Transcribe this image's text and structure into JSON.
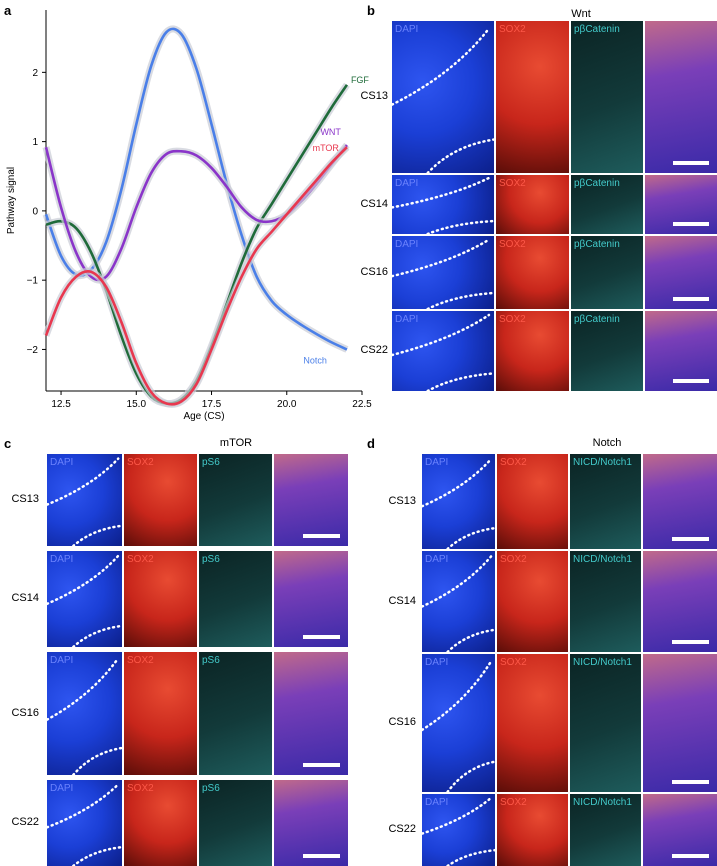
{
  "panel_letters": {
    "a": "a",
    "b": "b",
    "c": "c",
    "d": "d"
  },
  "chart_data": {
    "type": "line",
    "title": "",
    "xlabel": "Age (CS)",
    "ylabel": "Pathway signal",
    "xlim": [
      12,
      22.5
    ],
    "ylim": [
      -2.6,
      2.9
    ],
    "xticks": [
      "12.5",
      "15.0",
      "17.5",
      "20.0",
      "22.5"
    ],
    "xtick_values": [
      12.5,
      15,
      17.5,
      20,
      22.5
    ],
    "yticks": [
      "−2",
      "−1",
      "0",
      "1",
      "2"
    ],
    "ytick_values": [
      -2,
      -1,
      0,
      1,
      2
    ],
    "series": [
      {
        "name": "Notch",
        "color": "#4a7fe8",
        "x": [
          12,
          12.5,
          13,
          13.5,
          14,
          14.5,
          15,
          15.5,
          16,
          16.5,
          17,
          17.5,
          18,
          18.5,
          19,
          19.5,
          20,
          20.5,
          21,
          21.5,
          22
        ],
        "y": [
          -0.05,
          -0.65,
          -0.92,
          -0.85,
          -0.45,
          0.3,
          1.25,
          2.1,
          2.58,
          2.55,
          2.05,
          1.25,
          0.4,
          -0.35,
          -0.95,
          -1.3,
          -1.5,
          -1.65,
          -1.78,
          -1.9,
          -2.0
        ]
      },
      {
        "name": "FGF",
        "color": "#1f6b3a",
        "x": [
          12,
          12.5,
          13,
          13.5,
          14,
          14.5,
          15,
          15.5,
          16,
          16.5,
          17,
          17.5,
          18,
          18.5,
          19,
          19.5,
          20,
          20.5,
          21,
          21.5,
          22
        ],
        "y": [
          -0.2,
          -0.15,
          -0.25,
          -0.6,
          -1.15,
          -1.8,
          -2.35,
          -2.68,
          -2.78,
          -2.72,
          -2.45,
          -1.95,
          -1.35,
          -0.75,
          -0.25,
          0.1,
          0.45,
          0.8,
          1.15,
          1.5,
          1.82
        ]
      },
      {
        "name": "WNT",
        "color": "#8a35c9",
        "x": [
          12,
          12.5,
          13,
          13.5,
          14,
          14.5,
          15,
          15.5,
          16,
          16.5,
          17,
          17.5,
          18,
          18.5,
          19,
          19.5,
          20,
          20.5,
          21,
          21.5,
          22
        ],
        "y": [
          0.92,
          0.05,
          -0.6,
          -0.95,
          -0.95,
          -0.55,
          0.05,
          0.55,
          0.82,
          0.86,
          0.8,
          0.62,
          0.35,
          0.05,
          -0.13,
          -0.15,
          -0.05,
          0.15,
          0.4,
          0.68,
          0.95
        ]
      },
      {
        "name": "mTOR",
        "color": "#e8384f",
        "x": [
          12,
          12.5,
          13,
          13.5,
          14,
          14.5,
          15,
          15.5,
          16,
          16.5,
          17,
          17.5,
          18,
          18.5,
          19,
          19.5,
          20,
          20.5,
          21,
          21.5,
          22
        ],
        "y": [
          -1.8,
          -1.25,
          -0.95,
          -0.88,
          -1.1,
          -1.6,
          -2.2,
          -2.62,
          -2.78,
          -2.75,
          -2.5,
          -2.0,
          -1.45,
          -0.95,
          -0.55,
          -0.3,
          -0.05,
          0.2,
          0.45,
          0.7,
          0.92
        ]
      }
    ]
  },
  "panel_b": {
    "group": "Wnt",
    "rows": [
      "CS13",
      "CS14",
      "CS16",
      "CS22"
    ],
    "stains": [
      "DAPI",
      "SOX2",
      "pβCatenin"
    ]
  },
  "panel_c": {
    "group": "mTOR",
    "rows": [
      "CS13",
      "CS14",
      "CS16",
      "CS22"
    ],
    "stains": [
      "DAPI",
      "SOX2",
      "pS6"
    ]
  },
  "panel_d": {
    "group": "Notch",
    "rows": [
      "CS13",
      "CS14",
      "CS16",
      "CS22"
    ],
    "stains": [
      "DAPI",
      "SOX2",
      "NICD/Notch1"
    ]
  },
  "colors": {
    "dapi": "#1b3fd6",
    "sox2": "#c8261b",
    "cyan": "#2fb6b6",
    "merge": "#7a3fb8"
  }
}
